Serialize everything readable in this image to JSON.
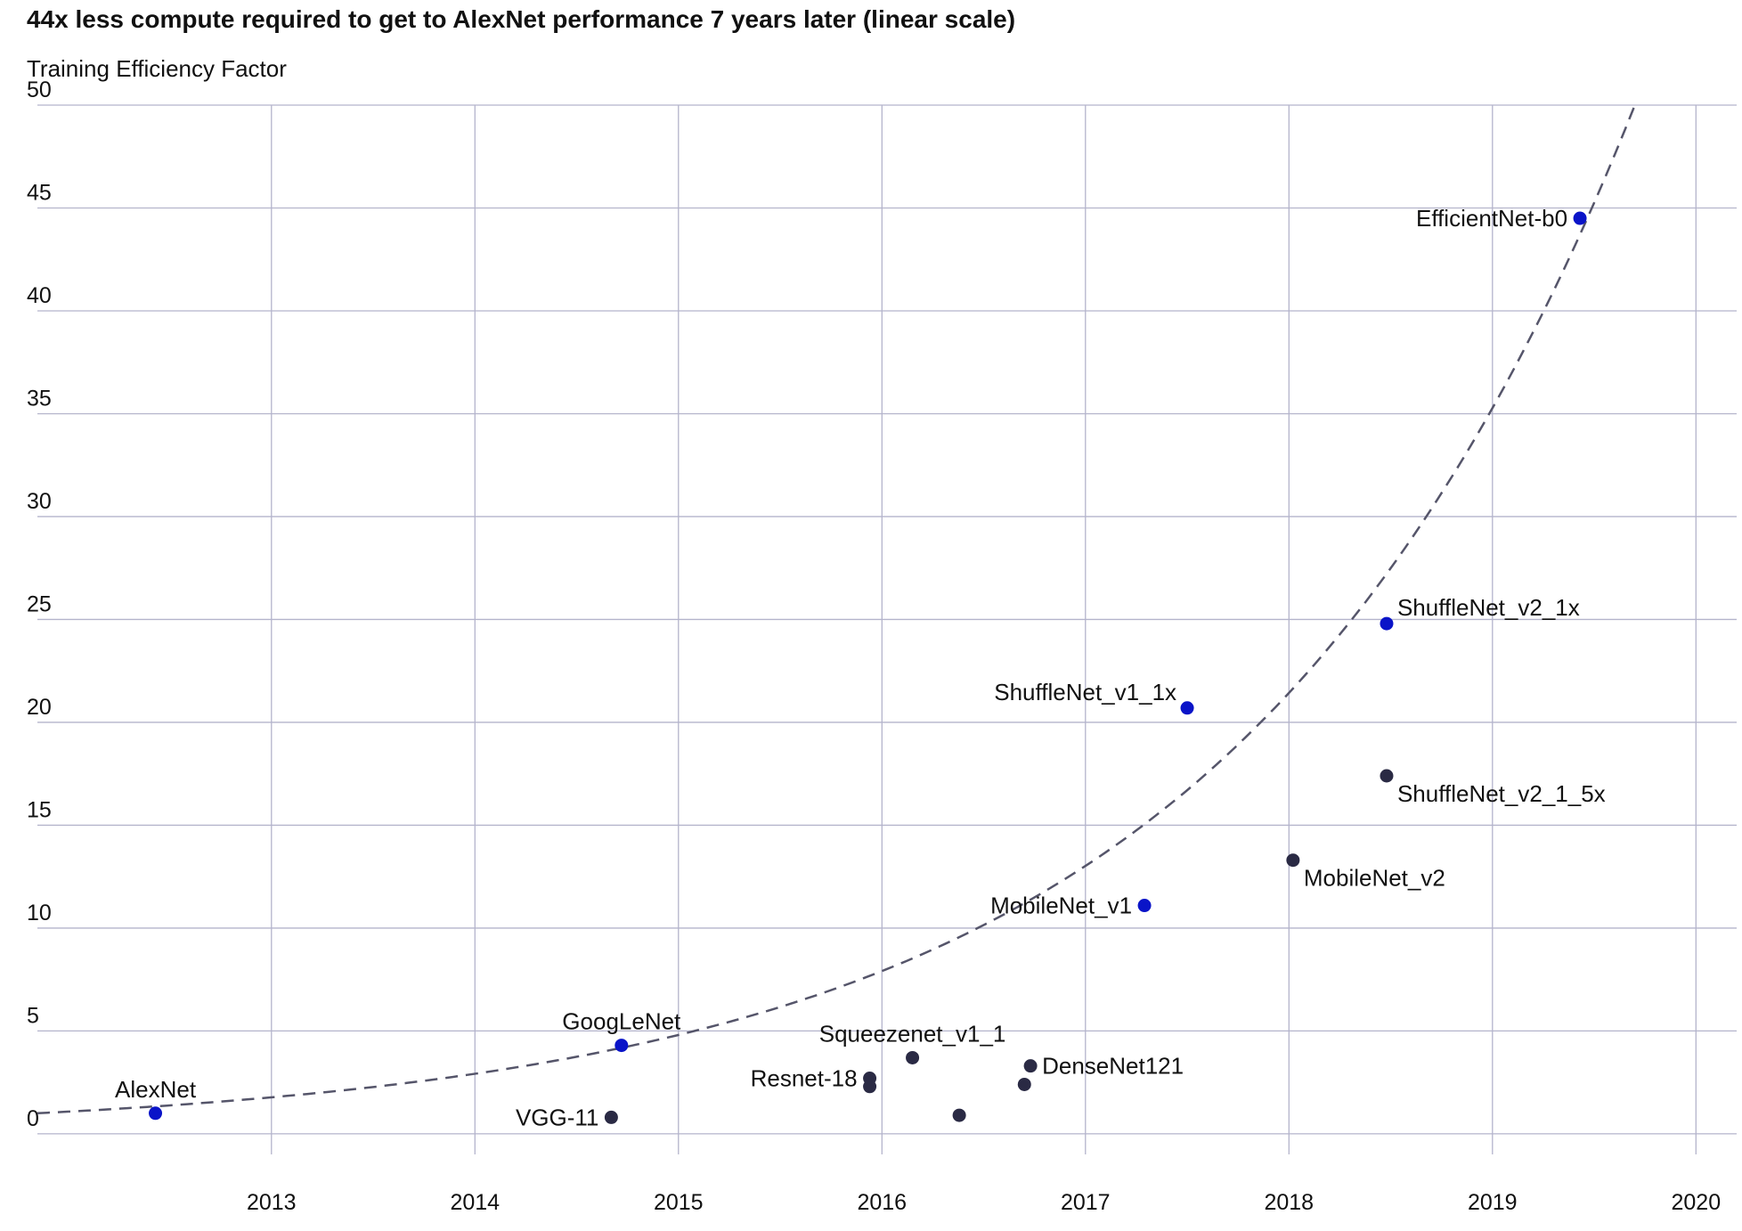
{
  "chart_data": {
    "type": "scatter",
    "title": "44x less compute required to get to AlexNet performance 7 years later (linear scale)",
    "ylabel": "Training Efficiency Factor",
    "xlabel": "",
    "xlim": [
      2011.85,
      2020.2
    ],
    "ylim": [
      -1,
      50
    ],
    "x_ticks": [
      2013,
      2014,
      2015,
      2016,
      2017,
      2018,
      2019,
      2020
    ],
    "y_ticks": [
      0,
      5,
      10,
      15,
      20,
      25,
      30,
      35,
      40,
      45,
      50
    ],
    "grid": true,
    "colors": {
      "highlight": "#0a14c8",
      "other": "#2a2a44",
      "trend": "#55556a",
      "grid": "#b4b4cc"
    },
    "points": [
      {
        "label": "AlexNet",
        "x": 2012.43,
        "y": 1.0,
        "highlight": true,
        "label_pos": "above"
      },
      {
        "label": "VGG-11",
        "x": 2014.67,
        "y": 0.8,
        "highlight": false,
        "label_pos": "left"
      },
      {
        "label": "GoogLeNet",
        "x": 2014.72,
        "y": 4.3,
        "highlight": true,
        "label_pos": "above"
      },
      {
        "label": "Resnet-18",
        "x": 2015.94,
        "y": 2.7,
        "highlight": false,
        "label_pos": "left"
      },
      {
        "label": "",
        "x": 2015.94,
        "y": 2.3,
        "highlight": false,
        "label_pos": "none"
      },
      {
        "label": "Squeezenet_v1_1",
        "x": 2016.15,
        "y": 3.7,
        "highlight": false,
        "label_pos": "above"
      },
      {
        "label": "",
        "x": 2016.38,
        "y": 0.9,
        "highlight": false,
        "label_pos": "none"
      },
      {
        "label": "",
        "x": 2016.7,
        "y": 2.4,
        "highlight": false,
        "label_pos": "none"
      },
      {
        "label": "DenseNet121",
        "x": 2016.73,
        "y": 3.3,
        "highlight": false,
        "label_pos": "right"
      },
      {
        "label": "MobileNet_v1",
        "x": 2017.29,
        "y": 11.1,
        "highlight": true,
        "label_pos": "left"
      },
      {
        "label": "ShuffleNet_v1_1x",
        "x": 2017.5,
        "y": 20.7,
        "highlight": true,
        "label_pos": "upper-left"
      },
      {
        "label": "MobileNet_v2",
        "x": 2018.02,
        "y": 13.3,
        "highlight": false,
        "label_pos": "below-right"
      },
      {
        "label": "ShuffleNet_v2_1_5x",
        "x": 2018.48,
        "y": 17.4,
        "highlight": false,
        "label_pos": "below-right"
      },
      {
        "label": "ShuffleNet_v2_1x",
        "x": 2018.48,
        "y": 24.8,
        "highlight": true,
        "label_pos": "upper-right"
      },
      {
        "label": "EfficientNet-b0",
        "x": 2019.43,
        "y": 44.5,
        "highlight": true,
        "label_pos": "left"
      }
    ],
    "trend": {
      "style": "dashed",
      "model": "exponential",
      "points": [
        [
          2011.85,
          1.0
        ],
        [
          2019.7,
          50.0
        ]
      ]
    }
  }
}
